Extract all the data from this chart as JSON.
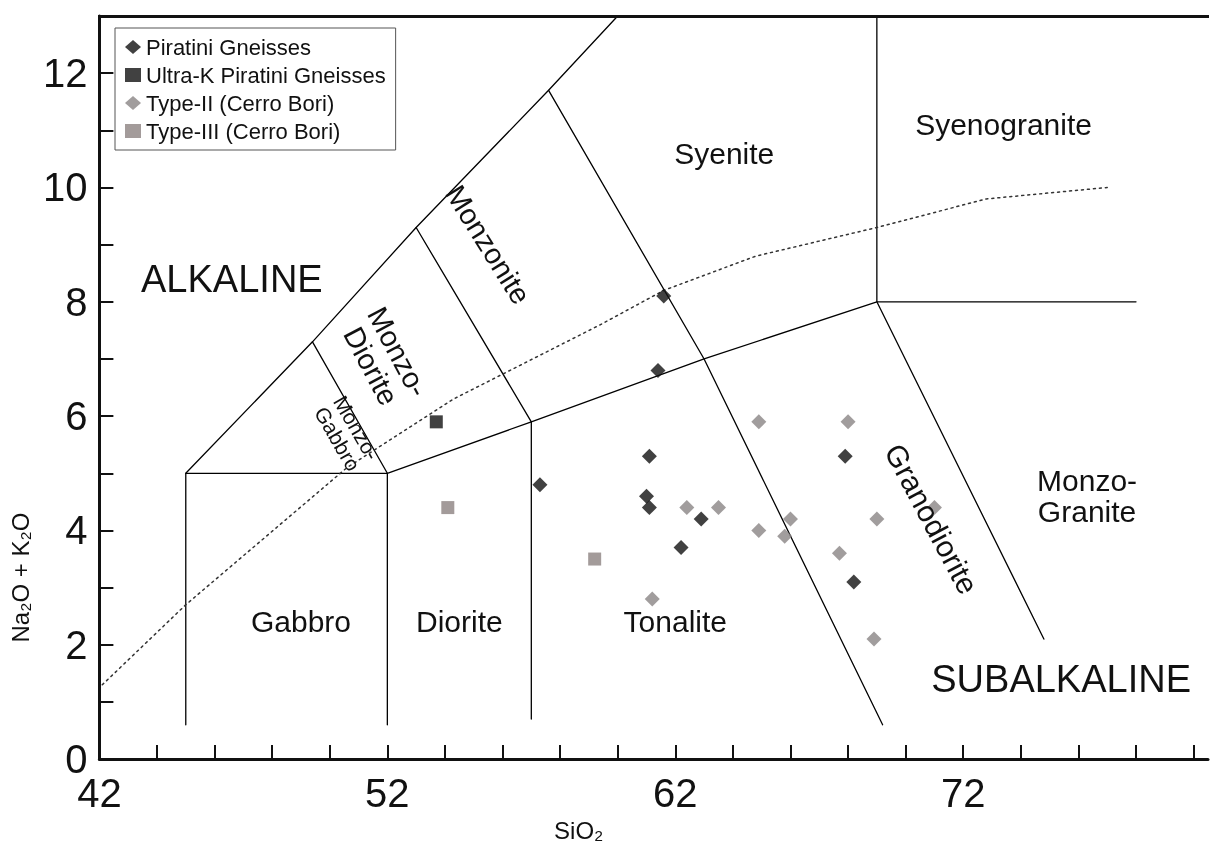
{
  "chart_data": {
    "type": "scatter",
    "xlabel": "SiO₂",
    "ylabel": "Na₂O + K₂O",
    "xlim": [
      42,
      80.5
    ],
    "ylim": [
      0,
      13
    ],
    "xticks": [
      42,
      {
        "value": 44,
        "label": null
      },
      {
        "value": 46,
        "label": null
      },
      {
        "value": 48,
        "label": null
      },
      {
        "value": 50,
        "label": null
      },
      52,
      {
        "value": 54,
        "label": null
      },
      {
        "value": 56,
        "label": null
      },
      {
        "value": 58,
        "label": null
      },
      {
        "value": 60,
        "label": null
      },
      62,
      {
        "value": 64,
        "label": null
      },
      {
        "value": 66,
        "label": null
      },
      {
        "value": 68,
        "label": null
      },
      {
        "value": 70,
        "label": null
      },
      72,
      {
        "value": 74,
        "label": null
      },
      {
        "value": 76,
        "label": null
      },
      {
        "value": 78,
        "label": null
      },
      {
        "value": 80,
        "label": null
      }
    ],
    "yticks": [
      0,
      {
        "value": 1,
        "label": null
      },
      2,
      {
        "value": 3,
        "label": null
      },
      4,
      {
        "value": 5,
        "label": null
      },
      6,
      {
        "value": 7,
        "label": null
      },
      8,
      {
        "value": 9,
        "label": null
      },
      10,
      {
        "value": 11,
        "label": null
      },
      12
    ],
    "legend": "top left",
    "series": [
      {
        "name": "Piratini Gneisses",
        "marker": "diamond",
        "color": "#111111",
        "x": [
          61.6,
          61.4,
          57.3,
          61.1,
          61.0,
          61.1,
          62.9,
          62.2,
          67.9,
          68.2
        ],
        "values": [
          8.1,
          6.8,
          4.8,
          5.3,
          4.6,
          4.4,
          4.2,
          3.7,
          5.3,
          3.1
        ]
      },
      {
        "name": "Ultra-K Piratini Gneisses",
        "marker": "square",
        "color": "#111111",
        "x": [
          53.7
        ],
        "values": [
          5.9
        ]
      },
      {
        "name": "Type-II (Cerro Bori)",
        "marker": "diamond",
        "color": "#8a8585",
        "x": [
          64.9,
          68.0,
          62.4,
          63.5,
          66.0,
          64.9,
          65.8,
          67.7,
          69.0,
          71.0,
          61.2,
          68.9
        ],
        "values": [
          5.9,
          5.9,
          4.4,
          4.4,
          4.2,
          4.0,
          3.9,
          3.6,
          4.2,
          4.4,
          2.8,
          2.1
        ]
      },
      {
        "name": "Type-III (Cerro Bori)",
        "marker": "square",
        "color": "#8c8281",
        "x": [
          54.1,
          59.2
        ],
        "values": [
          4.4,
          3.5
        ]
      },
      {
        "type": "line",
        "marker": "none",
        "color": "#000000",
        "x": [
          45,
          45,
          52,
          57,
          63,
          69,
          78
        ],
        "values": [
          0.6,
          5,
          5,
          5.9,
          7,
          8,
          8
        ]
      },
      {
        "type": "line",
        "marker": "none",
        "color": "#000000",
        "x": [
          52,
          52
        ],
        "values": [
          0.6,
          5
        ]
      },
      {
        "type": "line",
        "marker": "none",
        "color": "#000000",
        "x": [
          57,
          57
        ],
        "values": [
          0.7,
          5.9
        ]
      },
      {
        "type": "line",
        "marker": "none",
        "color": "#000000",
        "x": [
          45,
          49.4,
          53,
          57.6,
          60
        ],
        "values": [
          5,
          7.3,
          9.3,
          11.7,
          13
        ]
      },
      {
        "type": "line",
        "marker": "none",
        "color": "#000000",
        "x": [
          49.4,
          52
        ],
        "values": [
          7.3,
          5
        ]
      },
      {
        "type": "line",
        "marker": "none",
        "color": "#000000",
        "x": [
          53,
          57
        ],
        "values": [
          9.3,
          5.9
        ]
      },
      {
        "type": "line",
        "marker": "none",
        "color": "#000000",
        "x": [
          57.6,
          63,
          69.2
        ],
        "values": [
          11.7,
          7,
          0.6
        ]
      },
      {
        "type": "line",
        "marker": "none",
        "color": "#000000",
        "x": [
          69,
          69,
          74.8
        ],
        "values": [
          13,
          8,
          2.1
        ]
      },
      {
        "type": "line",
        "marker": "none",
        "line_style": "dotted",
        "color": "#333333",
        "x": [
          42.1,
          45,
          50.6,
          54.3,
          59.4,
          61.6,
          64.8,
          69,
          72.8,
          77
        ],
        "values": [
          1.3,
          2.7,
          5.1,
          6.3,
          7.6,
          8.2,
          8.8,
          9.3,
          9.8,
          10.0
        ]
      }
    ],
    "annotations": [
      "ALKALINE",
      "Monzo-Gabbro",
      "Monzo-Diorite",
      "Monzonite",
      "Syenite",
      "Syenogranite",
      "Gabbro",
      "Diorite",
      "Tonalite",
      "Granodiorite",
      "Monzo-Granite",
      "SUBALKALINE"
    ]
  }
}
